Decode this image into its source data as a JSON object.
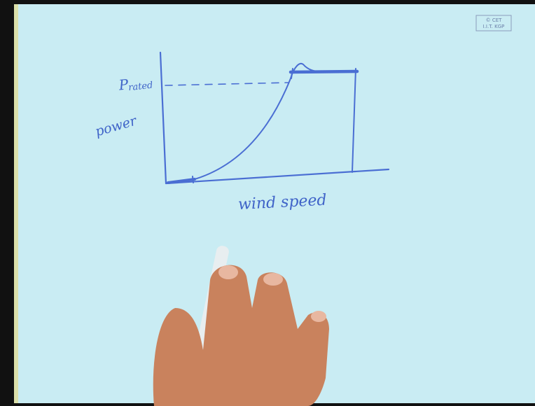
{
  "diagram": {
    "labels": {
      "power_symbol": "P",
      "power_subscript": "rated",
      "y_axis": "power",
      "x_axis": "wind speed"
    },
    "watermark": {
      "line1": "© CET",
      "line2": "I.I.T. KGP"
    }
  }
}
